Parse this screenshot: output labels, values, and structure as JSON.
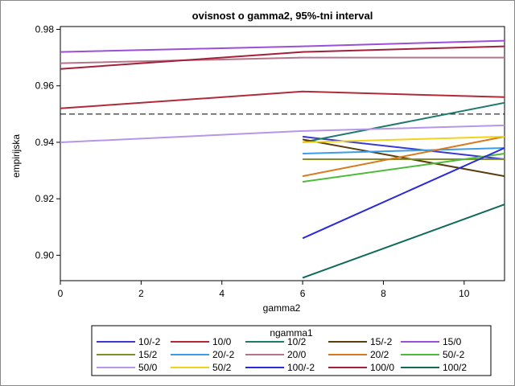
{
  "chart_data": {
    "type": "line",
    "title": "ovisnost o gamma2, 95%-tni interval",
    "xlabel": "gamma2",
    "ylabel": "empirijska",
    "xlim": [
      0,
      11
    ],
    "ylim": [
      0.891,
      0.981
    ],
    "x_ticks": [
      0,
      2,
      4,
      6,
      8,
      10
    ],
    "y_ticks": [
      0.9,
      0.92,
      0.94,
      0.96,
      0.98
    ],
    "x_tick_labels": [
      "0",
      "2",
      "4",
      "6",
      "8",
      "10"
    ],
    "y_tick_labels": [
      "0.90",
      "0.92",
      "0.94",
      "0.96",
      "0.98"
    ],
    "reference_line": {
      "y": 0.95,
      "style": "dashed"
    },
    "grid": false,
    "legend": {
      "title": "ngamma1",
      "placement": "bottom",
      "columns": 5
    },
    "series": [
      {
        "name": "10/-2",
        "color": "#3a3ad0",
        "points": [
          [
            6,
            0.942
          ],
          [
            11,
            0.934
          ]
        ]
      },
      {
        "name": "10/0",
        "color": "#b22a3a",
        "points": [
          [
            0,
            0.952
          ],
          [
            6,
            0.958
          ],
          [
            11,
            0.956
          ]
        ]
      },
      {
        "name": "10/2",
        "color": "#1f7a6e",
        "points": [
          [
            6,
            0.94
          ],
          [
            11,
            0.954
          ]
        ]
      },
      {
        "name": "15/-2",
        "color": "#5c3d0e",
        "points": [
          [
            6,
            0.941
          ],
          [
            11,
            0.928
          ]
        ]
      },
      {
        "name": "15/0",
        "color": "#9b4fd6",
        "points": [
          [
            0,
            0.972
          ],
          [
            6,
            0.974
          ],
          [
            11,
            0.976
          ]
        ]
      },
      {
        "name": "15/2",
        "color": "#7f8f2a",
        "points": [
          [
            6,
            0.934
          ],
          [
            11,
            0.934
          ]
        ]
      },
      {
        "name": "20/-2",
        "color": "#3a9de8",
        "points": [
          [
            6,
            0.936
          ],
          [
            11,
            0.938
          ]
        ]
      },
      {
        "name": "20/0",
        "color": "#b8738a",
        "points": [
          [
            0,
            0.968
          ],
          [
            6,
            0.97
          ],
          [
            11,
            0.97
          ]
        ]
      },
      {
        "name": "20/2",
        "color": "#d9781c",
        "points": [
          [
            6,
            0.928
          ],
          [
            11,
            0.942
          ]
        ]
      },
      {
        "name": "50/-2",
        "color": "#4dbb3a",
        "points": [
          [
            6,
            0.926
          ],
          [
            11,
            0.936
          ]
        ]
      },
      {
        "name": "50/0",
        "color": "#b596e8",
        "points": [
          [
            0,
            0.94
          ],
          [
            6,
            0.944
          ],
          [
            11,
            0.946
          ]
        ]
      },
      {
        "name": "50/2",
        "color": "#f2d21a",
        "points": [
          [
            6,
            0.94
          ],
          [
            11,
            0.942
          ]
        ]
      },
      {
        "name": "100/-2",
        "color": "#2a2ad8",
        "points": [
          [
            6,
            0.906
          ],
          [
            11,
            0.938
          ]
        ]
      },
      {
        "name": "100/0",
        "color": "#a3203a",
        "points": [
          [
            0,
            0.966
          ],
          [
            6,
            0.972
          ],
          [
            11,
            0.974
          ]
        ]
      },
      {
        "name": "100/2",
        "color": "#0f6a5a",
        "points": [
          [
            6,
            0.892
          ],
          [
            11,
            0.918
          ]
        ]
      }
    ]
  }
}
